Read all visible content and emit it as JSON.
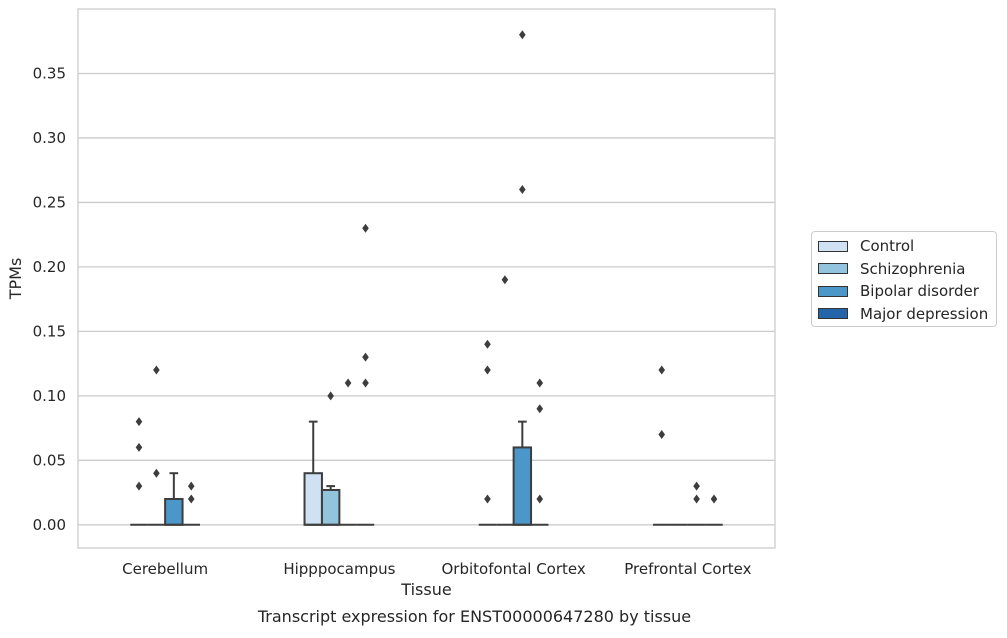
{
  "chart_data": {
    "type": "box",
    "title": "Transcript expression for ENST00000647280 by tissue",
    "xlabel": "Tissue",
    "ylabel": "TPMs",
    "ylim": [
      -0.018,
      0.4
    ],
    "yticks": [
      0.0,
      0.05,
      0.1,
      0.15,
      0.2,
      0.25,
      0.3,
      0.35
    ],
    "ytick_labels": [
      "0.00",
      "0.05",
      "0.10",
      "0.15",
      "0.20",
      "0.25",
      "0.30",
      "0.35"
    ],
    "grid": true,
    "legend_position": "right",
    "categories": [
      "Cerebellum",
      "Hipppocampus",
      "Orbitofontal Cortex",
      "Prefrontal Cortex"
    ],
    "series": [
      {
        "name": "Control",
        "color": "#cfe1f2",
        "boxes": [
          {
            "q1": 0,
            "median": 0,
            "q3": 0,
            "whislo": 0,
            "whishi": 0,
            "fliers": [
              0.03,
              0.06,
              0.08
            ]
          },
          {
            "q1": 0,
            "median": 0,
            "q3": 0.04,
            "whislo": 0,
            "whishi": 0.08,
            "fliers": []
          },
          {
            "q1": 0,
            "median": 0,
            "q3": 0,
            "whislo": 0,
            "whishi": 0,
            "fliers": [
              0.02,
              0.12,
              0.14
            ]
          },
          {
            "q1": 0,
            "median": 0,
            "q3": 0,
            "whislo": 0,
            "whishi": 0,
            "fliers": [
              0.07,
              0.12
            ]
          }
        ]
      },
      {
        "name": "Schizophrenia",
        "color": "#93c4de",
        "boxes": [
          {
            "q1": 0,
            "median": 0,
            "q3": 0,
            "whislo": 0,
            "whishi": 0,
            "fliers": [
              0.04,
              0.12
            ]
          },
          {
            "q1": 0,
            "median": 0,
            "q3": 0.027,
            "whislo": 0,
            "whishi": 0.03,
            "fliers": [
              0.1
            ]
          },
          {
            "q1": 0,
            "median": 0,
            "q3": 0,
            "whislo": 0,
            "whishi": 0,
            "fliers": [
              0.19
            ]
          },
          {
            "q1": 0,
            "median": 0,
            "q3": 0,
            "whislo": 0,
            "whishi": 0,
            "fliers": []
          }
        ]
      },
      {
        "name": "Bipolar disorder",
        "color": "#4b97c9",
        "boxes": [
          {
            "q1": 0,
            "median": 0,
            "q3": 0.02,
            "whislo": 0,
            "whishi": 0.04,
            "fliers": []
          },
          {
            "q1": 0,
            "median": 0,
            "q3": 0,
            "whislo": 0,
            "whishi": 0,
            "fliers": [
              0.11
            ]
          },
          {
            "q1": 0,
            "median": 0,
            "q3": 0.06,
            "whislo": 0,
            "whishi": 0.08,
            "fliers": [
              0.26,
              0.38
            ]
          },
          {
            "q1": 0,
            "median": 0,
            "q3": 0,
            "whislo": 0,
            "whishi": 0,
            "fliers": [
              0.02,
              0.03
            ]
          }
        ]
      },
      {
        "name": "Major depression",
        "color": "#2464a8",
        "boxes": [
          {
            "q1": 0,
            "median": 0,
            "q3": 0,
            "whislo": 0,
            "whishi": 0,
            "fliers": [
              0.02,
              0.03
            ]
          },
          {
            "q1": 0,
            "median": 0,
            "q3": 0,
            "whislo": 0,
            "whishi": 0,
            "fliers": [
              0.11,
              0.13,
              0.23
            ]
          },
          {
            "q1": 0,
            "median": 0,
            "q3": 0,
            "whislo": 0,
            "whishi": 0,
            "fliers": [
              0.02,
              0.09,
              0.11
            ]
          },
          {
            "q1": 0,
            "median": 0,
            "q3": 0,
            "whislo": 0,
            "whishi": 0,
            "fliers": [
              0.02
            ]
          }
        ]
      }
    ]
  }
}
